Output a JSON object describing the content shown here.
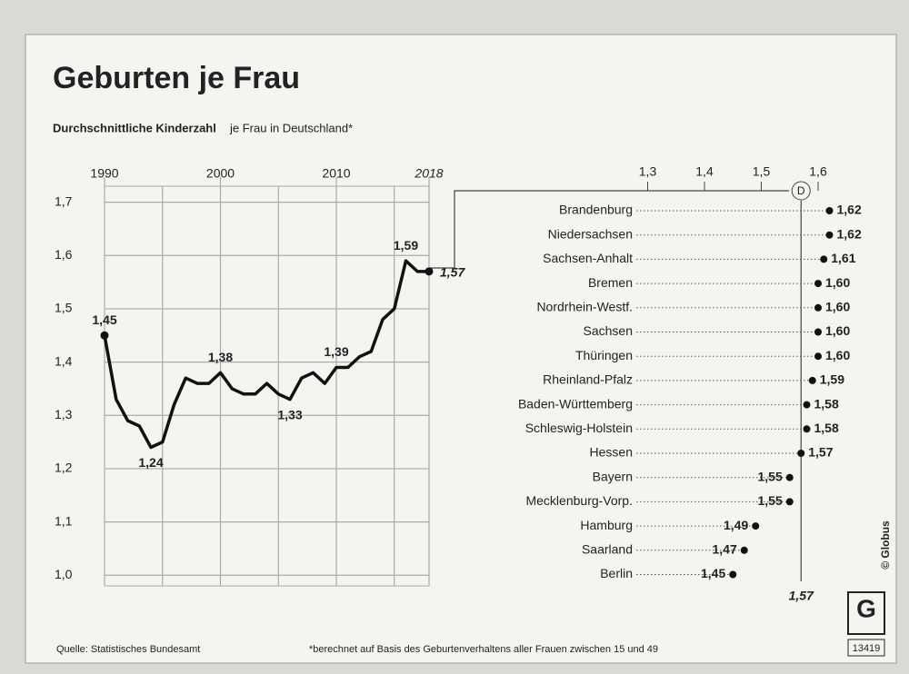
{
  "title": "Geburten je Frau",
  "subtitle": {
    "bold": "Durchschnittliche Kinderzahl",
    "rest": "je Frau in Deutschland*"
  },
  "footer": {
    "source": "Quelle: Statistisches Bundesamt",
    "note": "*berechnet auf Basis des Geburtenverhaltens aller Frauen zwischen 15 und 49",
    "credit": "© Globus",
    "logo": "G",
    "number": "13419"
  },
  "chart_data": [
    {
      "type": "line",
      "color": "#111111",
      "x": [
        1990,
        1991,
        1992,
        1993,
        1994,
        1995,
        1996,
        1997,
        1998,
        1999,
        2000,
        2001,
        2002,
        2003,
        2004,
        2005,
        2006,
        2007,
        2008,
        2009,
        2010,
        2011,
        2012,
        2013,
        2014,
        2015,
        2016,
        2017,
        2018
      ],
      "values": [
        1.45,
        1.33,
        1.29,
        1.28,
        1.24,
        1.25,
        1.32,
        1.37,
        1.36,
        1.36,
        1.38,
        1.35,
        1.34,
        1.34,
        1.36,
        1.34,
        1.33,
        1.37,
        1.38,
        1.36,
        1.39,
        1.39,
        1.41,
        1.42,
        1.48,
        1.5,
        1.59,
        1.57,
        1.57
      ],
      "value_labels": [
        "1,45",
        null,
        null,
        null,
        "1,24",
        null,
        null,
        null,
        null,
        null,
        "1,38",
        null,
        null,
        null,
        null,
        null,
        "1,33",
        null,
        null,
        null,
        "1,39",
        null,
        null,
        null,
        null,
        null,
        "1,59",
        null,
        "1,57"
      ],
      "xlim": [
        1990,
        2018
      ],
      "xticks": [
        1990,
        2000,
        2010,
        2018
      ],
      "minor_xticks": [
        1995,
        2005,
        2015
      ],
      "ylim": [
        0.98,
        1.73
      ],
      "yticks": [
        {
          "value": 1.0,
          "label": "1,0"
        },
        {
          "value": 1.1,
          "label": "1,1"
        },
        {
          "value": 1.2,
          "label": "1,2"
        },
        {
          "value": 1.3,
          "label": "1,3"
        },
        {
          "value": 1.4,
          "label": "1,4"
        },
        {
          "value": 1.5,
          "label": "1,5"
        },
        {
          "value": 1.6,
          "label": "1,6"
        },
        {
          "value": 1.7,
          "label": "1,7"
        }
      ],
      "grid": true
    },
    {
      "type": "dot",
      "color": "#111111",
      "categories": [
        "Brandenburg",
        "Niedersachsen",
        "Sachsen-Anhalt",
        "Bremen",
        "Nordrhein-Westf.",
        "Sachsen",
        "Thüringen",
        "Rheinland-Pfalz",
        "Baden-Württemberg",
        "Schleswig-Holstein",
        "Hessen",
        "Bayern",
        "Mecklenburg-Vorp.",
        "Hamburg",
        "Saarland",
        "Berlin"
      ],
      "values": [
        1.62,
        1.62,
        1.61,
        1.6,
        1.6,
        1.6,
        1.6,
        1.59,
        1.58,
        1.58,
        1.57,
        1.55,
        1.55,
        1.49,
        1.47,
        1.45
      ],
      "value_labels": [
        "1,62",
        "1,62",
        "1,61",
        "1,60",
        "1,60",
        "1,60",
        "1,60",
        "1,59",
        "1,58",
        "1,58",
        "1,57",
        "1,55",
        "1,55",
        "1,49",
        "1,47",
        "1,45"
      ],
      "xlim": [
        1.28,
        1.64
      ],
      "xticks": [
        {
          "value": 1.3,
          "label": "1,3"
        },
        {
          "value": 1.4,
          "label": "1,4"
        },
        {
          "value": 1.5,
          "label": "1,5"
        },
        {
          "value": 1.6,
          "label": "1,6"
        }
      ],
      "reference": {
        "label": "D",
        "value": 1.57,
        "value_label": "1,57"
      }
    }
  ]
}
